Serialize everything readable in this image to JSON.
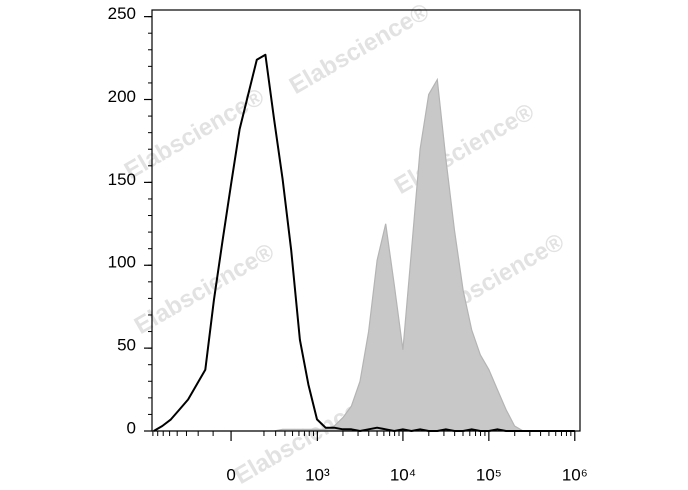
{
  "chart_data": {
    "type": "histogram-overlay",
    "watermark": "Elabscience®",
    "xscale": "asinh",
    "x": [
      -782,
      -616,
      -481,
      -373,
      -285,
      -211,
      -149,
      -95,
      -46,
      0,
      46,
      95,
      149,
      211,
      285,
      373,
      481,
      616,
      782,
      990,
      1251,
      1579,
      1990,
      2508,
      3160,
      3979,
      5010,
      6308,
      7942,
      10000,
      12589,
      15849,
      19953,
      25119,
      31623,
      39811,
      50119,
      63096,
      79433,
      100000,
      125893,
      158489,
      199526,
      251189,
      316228,
      398107,
      501187,
      630957,
      794328,
      1000000
    ],
    "series": [
      {
        "color": "#c8c8c8",
        "fill": true,
        "values": [
          0,
          0,
          0,
          0,
          0,
          0,
          0,
          0,
          0,
          0,
          0,
          0,
          0,
          0,
          0,
          1,
          1,
          1,
          1,
          1,
          1,
          3,
          8,
          15,
          30,
          60,
          103,
          125,
          88,
          49,
          109,
          170,
          203,
          212,
          164,
          121,
          85,
          61,
          46,
          37,
          25,
          13,
          3,
          0,
          0,
          0,
          0,
          0,
          0,
          0
        ]
      },
      {
        "color": "#000000",
        "fill": false,
        "values": [
          0,
          3,
          7,
          13,
          19,
          28,
          37,
          79,
          115,
          149,
          182,
          203,
          224,
          227,
          188,
          152,
          109,
          55,
          28,
          7,
          2,
          2,
          1,
          1,
          0,
          1,
          2,
          1,
          0,
          1,
          0,
          1,
          0,
          0,
          1,
          0,
          0,
          1,
          0,
          0,
          1,
          0,
          0,
          0,
          0,
          0,
          0,
          0,
          0,
          0
        ]
      }
    ],
    "xlim": [
      -820,
      1150000
    ],
    "xticks": [
      0,
      {
        "value": 1000,
        "label": "10³"
      },
      {
        "value": 10000,
        "label": "10⁴"
      },
      {
        "value": 100000,
        "label": "10⁵"
      },
      {
        "value": 1000000,
        "label": "10⁶"
      }
    ],
    "ylim": [
      0,
      254
    ],
    "yticks": [
      0,
      50,
      100,
      150,
      200,
      250
    ]
  }
}
